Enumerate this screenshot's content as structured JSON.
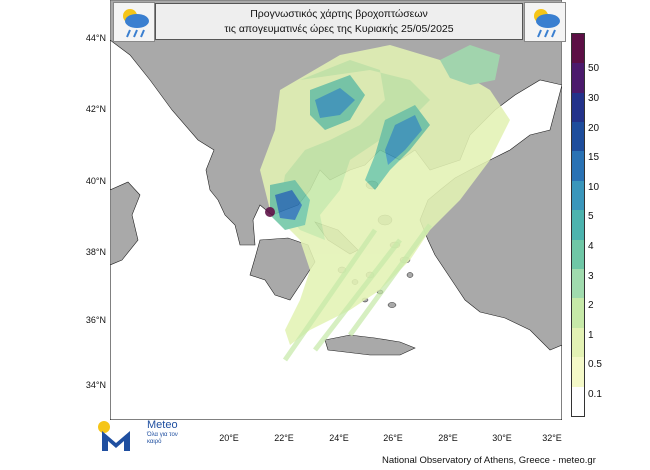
{
  "title": {
    "line1": "Προγνωστικός χάρτης βροχοπτώσεων",
    "line2": "τις απογευματινές ώρες  της Κυριακής 25/05/2025"
  },
  "icons": {
    "left": "rain-cloud-sun-icon",
    "right": "rain-cloud-sun-icon"
  },
  "latitudes": [
    "44°N",
    "42°N",
    "40°N",
    "38°N",
    "36°N",
    "34°N"
  ],
  "longitudes": [
    "20°E",
    "22°E",
    "24°E",
    "26°E",
    "28°E",
    "30°E",
    "32°E"
  ],
  "colorbar": {
    "labels": [
      "0.1",
      "0.5",
      "1",
      "2",
      "3",
      "4",
      "5",
      "10",
      "15",
      "20",
      "30",
      "50"
    ],
    "colors": [
      "#ffffff",
      "#f4f9c8",
      "#e3f2b4",
      "#c6e9a8",
      "#a0dbae",
      "#6fc7a6",
      "#4cb3ae",
      "#3a96bb",
      "#2a72b4",
      "#1e4d9c",
      "#23328a",
      "#4b1a6c",
      "#5c0f45"
    ]
  },
  "logo": {
    "name": "Meteo",
    "tagline": "Όλα για τον καιρό"
  },
  "credit": "National Observatory of Athens, Greece - meteo.gr",
  "colors": {
    "land": "#a9a9a9",
    "sea": "#ffffff",
    "border": "#000000"
  }
}
